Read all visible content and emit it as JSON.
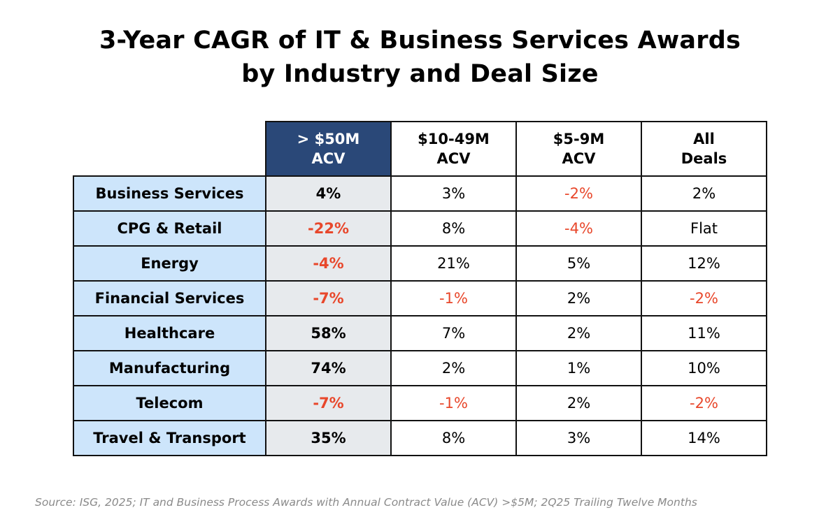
{
  "chart_data": {
    "type": "table",
    "title_lines": [
      "3-Year CAGR of IT & Business Services Awards",
      "by Industry and Deal Size"
    ],
    "columns": [
      {
        "line1": "> $50M",
        "line2": "ACV",
        "highlight": true
      },
      {
        "line1": "$10-49M",
        "line2": "ACV",
        "highlight": false
      },
      {
        "line1": "$5-9M",
        "line2": "ACV",
        "highlight": false
      },
      {
        "line1": "All",
        "line2": "Deals",
        "highlight": false
      }
    ],
    "rows": [
      {
        "industry": "Business Services",
        "values": [
          "4%",
          "3%",
          "-2%",
          "2%"
        ]
      },
      {
        "industry": "CPG & Retail",
        "values": [
          "-22%",
          "8%",
          "-4%",
          "Flat"
        ]
      },
      {
        "industry": "Energy",
        "values": [
          "-4%",
          "21%",
          "5%",
          "12%"
        ]
      },
      {
        "industry": "Financial Services",
        "values": [
          "-7%",
          "-1%",
          "2%",
          "-2%"
        ]
      },
      {
        "industry": "Healthcare",
        "values": [
          "58%",
          "7%",
          "2%",
          "11%"
        ]
      },
      {
        "industry": "Manufacturing",
        "values": [
          "74%",
          "2%",
          "1%",
          "10%"
        ]
      },
      {
        "industry": "Telecom",
        "values": [
          "-7%",
          "-1%",
          "2%",
          "-2%"
        ]
      },
      {
        "industry": "Travel & Transport",
        "values": [
          "35%",
          "8%",
          "3%",
          "14%"
        ]
      }
    ],
    "source": "Source: ISG, 2025; IT and Business Process Awards with Annual Contract Value (ACV) >$5M; 2Q25 Trailing Twelve Months"
  },
  "colors": {
    "header_highlight_bg": "#2a4878",
    "row_label_bg": "#cde5fb",
    "highlight_column_bg": "#e7eaed",
    "negative_text": "#e8472b",
    "source_text": "#8a8a8a"
  }
}
